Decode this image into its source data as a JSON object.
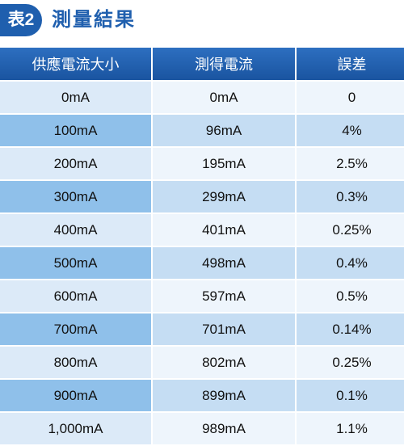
{
  "header": {
    "badge": "表2",
    "title": "測量結果"
  },
  "table": {
    "columns": [
      "供應電流大小",
      "測得電流",
      "誤差"
    ],
    "rows": [
      [
        "0mA",
        "0mA",
        "0"
      ],
      [
        "100mA",
        "96mA",
        "4%"
      ],
      [
        "200mA",
        "195mA",
        "2.5%"
      ],
      [
        "300mA",
        "299mA",
        "0.3%"
      ],
      [
        "400mA",
        "401mA",
        "0.25%"
      ],
      [
        "500mA",
        "498mA",
        "0.4%"
      ],
      [
        "600mA",
        "597mA",
        "0.5%"
      ],
      [
        "700mA",
        "701mA",
        "0.14%"
      ],
      [
        "800mA",
        "802mA",
        "0.25%"
      ],
      [
        "900mA",
        "899mA",
        "0.1%"
      ],
      [
        "1,000mA",
        "989mA",
        "1.1%"
      ]
    ]
  }
}
